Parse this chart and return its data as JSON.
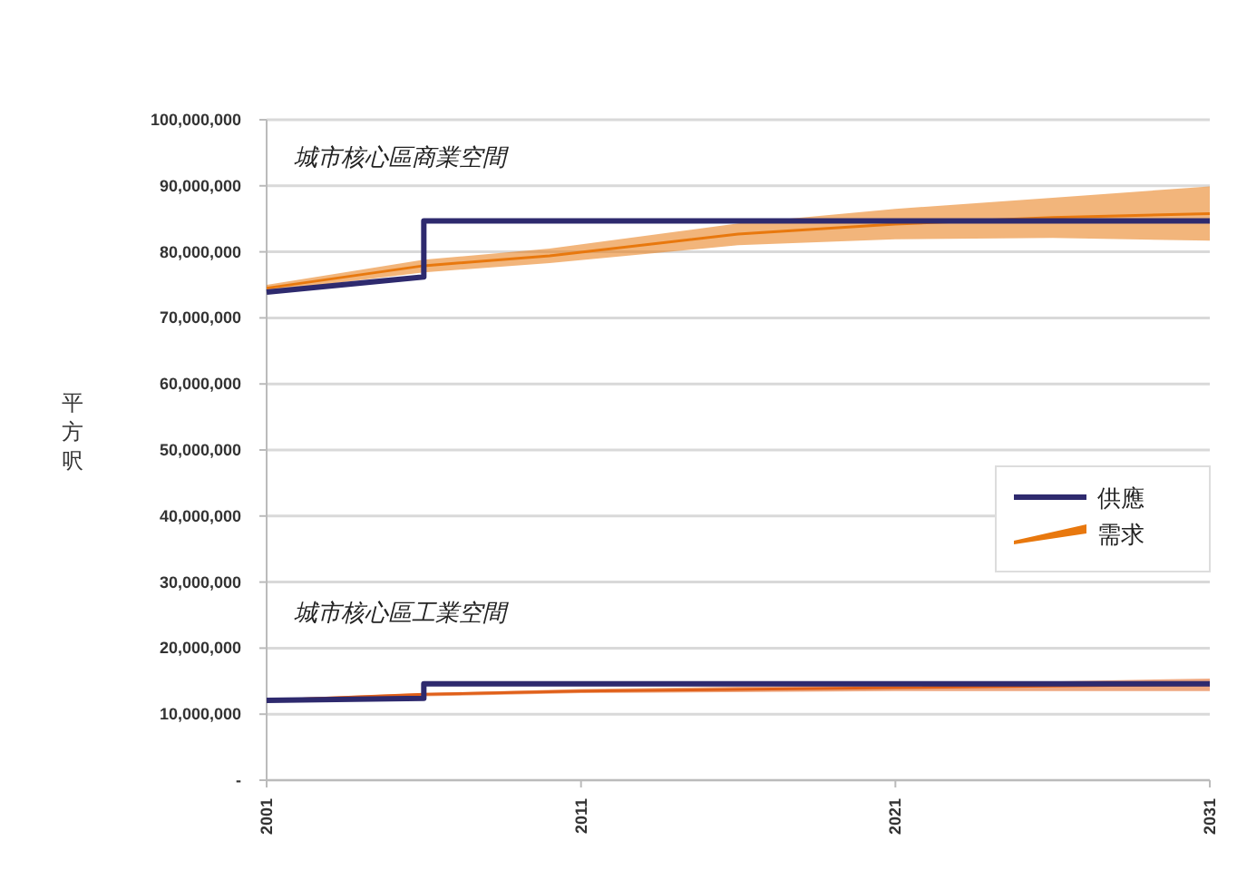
{
  "chart_data": {
    "type": "line",
    "ylabel": "平方呎",
    "xlim": [
      2001,
      2031
    ],
    "xticks": [
      2001,
      2011,
      2021,
      2031
    ],
    "ylim": [
      0,
      100000000
    ],
    "yticks": [
      {
        "value": 0,
        "label": "-"
      },
      {
        "value": 10000000,
        "label": "10,000,000"
      },
      {
        "value": 20000000,
        "label": "20,000,000"
      },
      {
        "value": 30000000,
        "label": "30,000,000"
      },
      {
        "value": 40000000,
        "label": "40,000,000"
      },
      {
        "value": 50000000,
        "label": "50,000,000"
      },
      {
        "value": 60000000,
        "label": "60,000,000"
      },
      {
        "value": 70000000,
        "label": "70,000,000"
      },
      {
        "value": 80000000,
        "label": "80,000,000"
      },
      {
        "value": 90000000,
        "label": "90,000,000"
      },
      {
        "value": 100000000,
        "label": "100,000,000"
      }
    ],
    "grid": "y",
    "legend": "right",
    "annotations": [
      "城市核心區商業空間",
      "城市核心區工業空間"
    ],
    "series": [
      {
        "name": "需求",
        "color": "#e8780e",
        "x": [
          2001,
          2006,
          2010,
          2016,
          2021,
          2026,
          2031
        ],
        "values": [
          74500000,
          77900000,
          79400000,
          82700000,
          84200000,
          85200000,
          85800000
        ],
        "upper": [
          75000000,
          78800000,
          80500000,
          84300000,
          86500000,
          88200000,
          89900000
        ],
        "lower": [
          74000000,
          76900000,
          78300000,
          81000000,
          81900000,
          82100000,
          81700000
        ]
      },
      {
        "color": "#e0601a",
        "x": [
          2001,
          2006,
          2011,
          2021,
          2031
        ],
        "values": [
          12100000,
          13000000,
          13500000,
          14000000,
          14500000
        ],
        "upper": [
          12300000,
          13200000,
          13800000,
          14500000,
          15400000
        ],
        "lower": [
          11900000,
          12700000,
          13200000,
          13500000,
          13500000
        ]
      },
      {
        "name": "供應",
        "color": "#2e2a6e",
        "x": [
          2001,
          2006,
          2006,
          2031
        ],
        "values": [
          73900000,
          76200000,
          84700000,
          84700000
        ]
      },
      {
        "color": "#2e2a6e",
        "x": [
          2001,
          2006,
          2006,
          2031
        ],
        "values": [
          12100000,
          12400000,
          14600000,
          14600000
        ]
      }
    ]
  }
}
